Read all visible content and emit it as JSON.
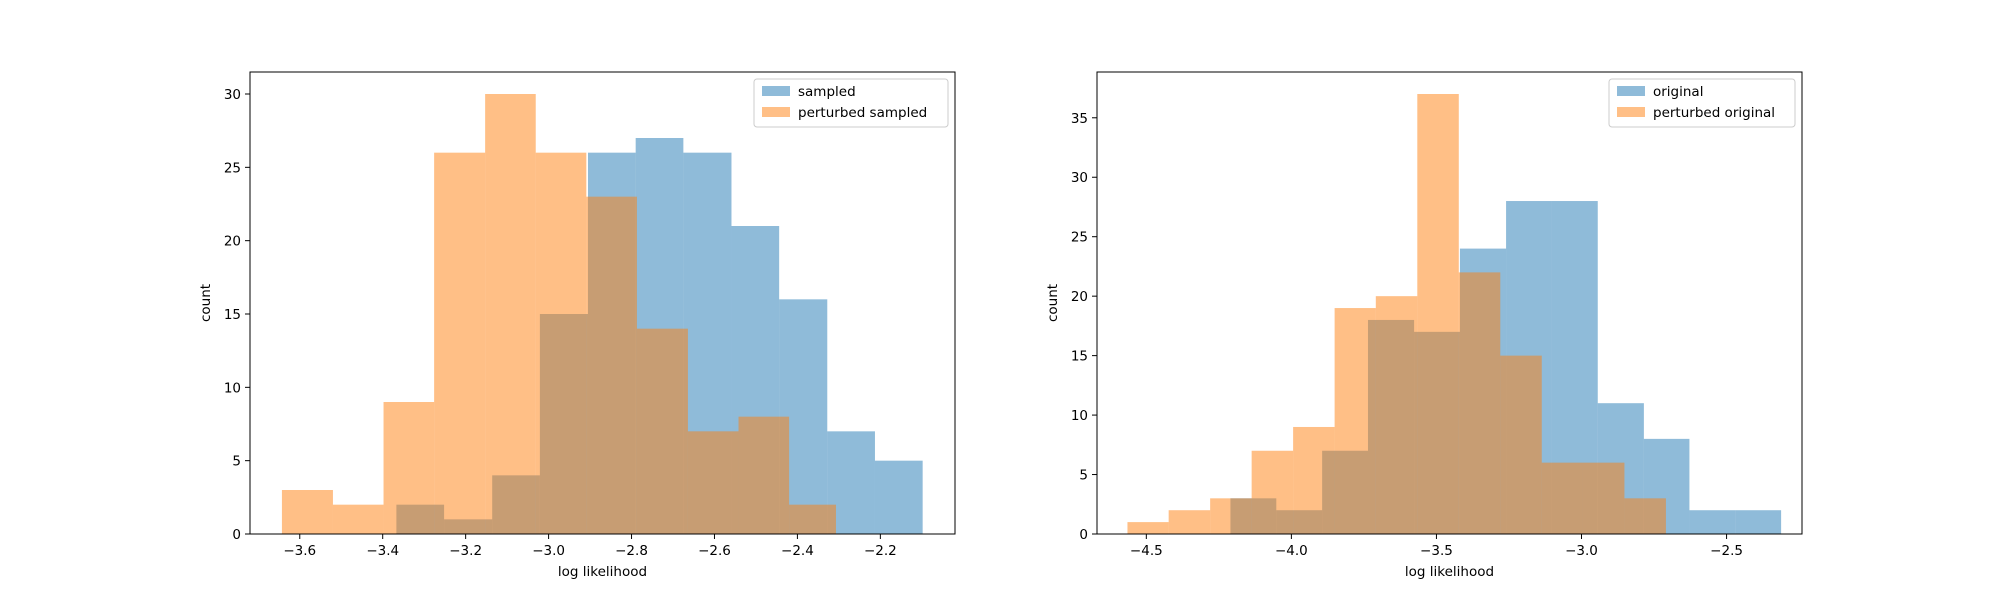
{
  "chart_data": [
    {
      "type": "histogram",
      "xlabel": "log likelihood",
      "ylabel": "count",
      "xlim": [
        -3.72,
        -2.02
      ],
      "ylim": [
        0,
        31.5
      ],
      "xticks": [
        -3.6,
        -3.4,
        -3.2,
        -3.0,
        -2.8,
        -2.6,
        -2.4,
        -2.2
      ],
      "xtick_labels": [
        "−3.6",
        "−3.4",
        "−3.2",
        "−3.0",
        "−2.8",
        "−2.6",
        "−2.4",
        "−2.2"
      ],
      "yticks": [
        0,
        5,
        10,
        15,
        20,
        25,
        30
      ],
      "ytick_labels": [
        "0",
        "5",
        "10",
        "15",
        "20",
        "25",
        "30"
      ],
      "legend_position": "top-right",
      "grid": false,
      "series": [
        {
          "name": "sampled",
          "color": "#1f77b4",
          "alpha": 0.5,
          "bin_edges": [
            -3.367,
            -3.252,
            -3.136,
            -3.021,
            -2.905,
            -2.79,
            -2.675,
            -2.559,
            -2.444,
            -2.328,
            -2.213,
            -2.098
          ],
          "counts": [
            2,
            1,
            4,
            15,
            26,
            27,
            26,
            21,
            16,
            7,
            5
          ]
        },
        {
          "name": "perturbed sampled",
          "color": "#ff7f0e",
          "alpha": 0.5,
          "bin_edges": [
            -3.643,
            -3.52,
            -3.398,
            -3.276,
            -3.153,
            -3.031,
            -2.909,
            -2.787,
            -2.664,
            -2.542,
            -2.42,
            -2.307
          ],
          "counts": [
            3,
            2,
            9,
            26,
            30,
            26,
            23,
            14,
            7,
            8,
            2
          ]
        }
      ]
    },
    {
      "type": "histogram",
      "xlabel": "log likelihood",
      "ylabel": "count",
      "xlim": [
        -4.67,
        -2.24
      ],
      "ylim": [
        0,
        38.85
      ],
      "xticks": [
        -4.5,
        -4.0,
        -3.5,
        -3.0,
        -2.5
      ],
      "xtick_labels": [
        "−4.5",
        "−4.0",
        "−3.5",
        "−3.0",
        "−2.5"
      ],
      "yticks": [
        0,
        5,
        10,
        15,
        20,
        25,
        30,
        35
      ],
      "ytick_labels": [
        "0",
        "5",
        "10",
        "15",
        "20",
        "25",
        "30",
        "35"
      ],
      "legend_position": "top-right",
      "grid": false,
      "series": [
        {
          "name": "original",
          "color": "#1f77b4",
          "alpha": 0.5,
          "bin_edges": [
            -4.21,
            -4.052,
            -3.894,
            -3.736,
            -3.577,
            -3.419,
            -3.26,
            -3.102,
            -2.944,
            -2.785,
            -2.628,
            -2.47,
            -2.312
          ],
          "counts": [
            3,
            2,
            7,
            18,
            17,
            24,
            28,
            28,
            11,
            8,
            2,
            2
          ]
        },
        {
          "name": "perturbed original",
          "color": "#ff7f0e",
          "alpha": 0.5,
          "bin_edges": [
            -4.565,
            -4.423,
            -4.28,
            -4.137,
            -3.994,
            -3.851,
            -3.709,
            -3.566,
            -3.423,
            -3.28,
            -3.137,
            -2.995,
            -2.852,
            -2.709
          ],
          "counts": [
            1,
            2,
            3,
            7,
            9,
            19,
            20,
            37,
            22,
            15,
            6,
            6,
            3
          ]
        }
      ]
    }
  ]
}
